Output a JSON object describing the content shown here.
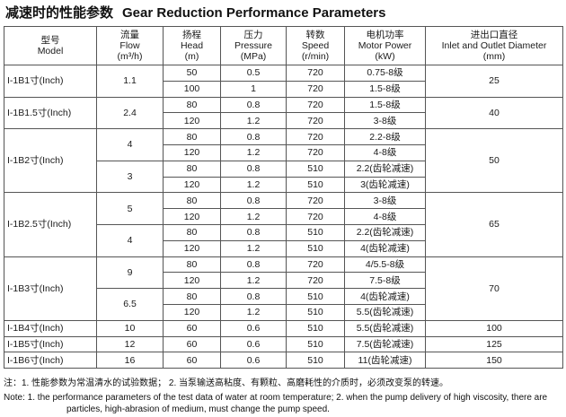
{
  "title": {
    "cn": "减速时的性能参数",
    "en": "Gear Reduction Performance Parameters"
  },
  "headers": {
    "model": {
      "cn": "型号",
      "en": "Model"
    },
    "flow": {
      "cn": "流量",
      "en": "Flow",
      "unit": "(m³/h)"
    },
    "head": {
      "cn": "扬程",
      "en": "Head",
      "unit": "(m)"
    },
    "pressure": {
      "cn": "压力",
      "en": "Pressure",
      "unit": "(MPa)"
    },
    "speed": {
      "cn": "转数",
      "en": "Speed",
      "unit": "(r/min)"
    },
    "power": {
      "cn": "电机功率",
      "en": "Motor Power",
      "unit": "(kW)"
    },
    "diameter": {
      "cn": "进出口直径",
      "en": "Inlet and Outlet Diameter",
      "unit": "(mm)"
    }
  },
  "rows": [
    {
      "model": "I-1B1寸(Inch)",
      "flow": "1.1",
      "head": "50",
      "pressure": "0.5",
      "speed": "720",
      "power": "0.75-8级",
      "diameter": "25"
    },
    {
      "head": "100",
      "pressure": "1",
      "speed": "720",
      "power": "1.5-8级"
    },
    {
      "model": "I-1B1.5寸(Inch)",
      "flow": "2.4",
      "head": "80",
      "pressure": "0.8",
      "speed": "720",
      "power": "1.5-8级",
      "diameter": "40"
    },
    {
      "head": "120",
      "pressure": "1.2",
      "speed": "720",
      "power": "3-8级"
    },
    {
      "model": "I-1B2寸(Inch)",
      "flow": "4",
      "head": "80",
      "pressure": "0.8",
      "speed": "720",
      "power": "2.2-8级",
      "diameter": "50"
    },
    {
      "head": "120",
      "pressure": "1.2",
      "speed": "720",
      "power": "4-8级"
    },
    {
      "flow": "3",
      "head": "80",
      "pressure": "0.8",
      "speed": "510",
      "power": "2.2(齿轮减速)"
    },
    {
      "head": "120",
      "pressure": "1.2",
      "speed": "510",
      "power": "3(齿轮减速)"
    },
    {
      "model": "I-1B2.5寸(Inch)",
      "flow": "5",
      "head": "80",
      "pressure": "0.8",
      "speed": "720",
      "power": "3-8级",
      "diameter": "65"
    },
    {
      "head": "120",
      "pressure": "1.2",
      "speed": "720",
      "power": "4-8级"
    },
    {
      "flow": "4",
      "head": "80",
      "pressure": "0.8",
      "speed": "510",
      "power": "2.2(齿轮减速)"
    },
    {
      "head": "120",
      "pressure": "1.2",
      "speed": "510",
      "power": "4(齿轮减速)"
    },
    {
      "model": "I-1B3寸(Inch)",
      "flow": "9",
      "head": "80",
      "pressure": "0.8",
      "speed": "720",
      "power": "4/5.5-8级",
      "diameter": "70"
    },
    {
      "head": "120",
      "pressure": "1.2",
      "speed": "720",
      "power": "7.5-8级"
    },
    {
      "flow": "6.5",
      "head": "80",
      "pressure": "0.8",
      "speed": "510",
      "power": "4(齿轮减速)"
    },
    {
      "head": "120",
      "pressure": "1.2",
      "speed": "510",
      "power": "5.5(齿轮减速)"
    },
    {
      "model": "I-1B4寸(Inch)",
      "flow": "10",
      "head": "60",
      "pressure": "0.6",
      "speed": "510",
      "power": "5.5(齿轮减速)",
      "diameter": "100"
    },
    {
      "model": "I-1B5寸(Inch)",
      "flow": "12",
      "head": "60",
      "pressure": "0.6",
      "speed": "510",
      "power": "7.5(齿轮减速)",
      "diameter": "125"
    },
    {
      "model": "I-1B6寸(Inch)",
      "flow": "16",
      "head": "60",
      "pressure": "0.6",
      "speed": "510",
      "power": "11(齿轮减速)",
      "diameter": "150"
    }
  ],
  "notes": {
    "cn": "注：1. 性能参数为常温清水的试验数据；  2. 当泵输送高粘度、有颗粒、高磨耗性的介质时，必须改变泵的转速。",
    "en1": "Note: 1. the performance parameters of the test data of water at room temperature; 2. when the pump delivery of high viscosity, there are",
    "en2": "particles, high-abrasion of medium, must change the pump speed."
  }
}
